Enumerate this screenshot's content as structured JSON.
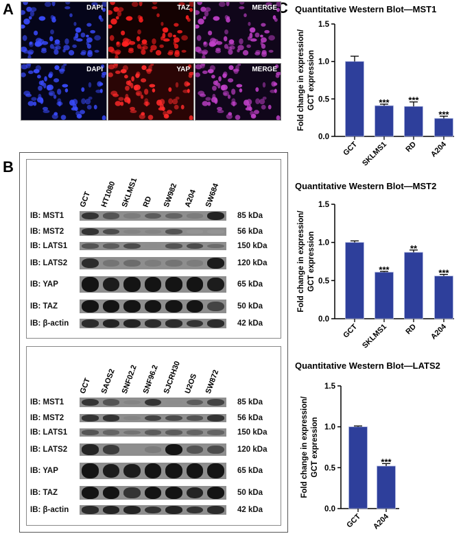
{
  "panels": {
    "a": "A",
    "b": "B",
    "c": "C"
  },
  "panel_a": {
    "rows": [
      [
        "DAPI",
        "TAZ",
        "MERGE"
      ],
      [
        "DAPI",
        "YAP",
        "MERGE"
      ]
    ]
  },
  "panel_b": {
    "blots": [
      {
        "lanes": [
          "GCT",
          "HT1080",
          "SKLMS1",
          "RD",
          "SW982",
          "A204",
          "SW684"
        ],
        "rows": [
          {
            "label": "IB: MST1",
            "kda": "85 kDa",
            "intensity": [
              0.8,
              0.6,
              0.35,
              0.55,
              0.5,
              0.35,
              0.9
            ]
          },
          {
            "label": "IB: MST2",
            "kda": "56 kDa",
            "intensity": [
              0.8,
              0.65,
              0.3,
              0.3,
              0.6,
              0.2,
              0.2
            ]
          },
          {
            "label": "IB: LATS1",
            "kda": "150 kDa",
            "intensity": [
              0.6,
              0.55,
              0.65,
              0.25,
              0.6,
              0.65,
              0.45
            ]
          },
          {
            "label": "IB: LATS2",
            "kda": "120 kDa",
            "intensity": [
              0.85,
              0.4,
              0.45,
              0.35,
              0.4,
              0.35,
              0.95
            ]
          },
          {
            "label": "IB: YAP",
            "kda": "65 kDa",
            "intensity": [
              1,
              0.95,
              1,
              1,
              1,
              1,
              0.95
            ]
          },
          {
            "label": "IB: TAZ",
            "kda": "50 kDa",
            "intensity": [
              1,
              1,
              1,
              1,
              1,
              1,
              0.7
            ]
          },
          {
            "label": "IB: β-actin",
            "kda": "42 kDa",
            "intensity": [
              0.85,
              0.9,
              0.9,
              0.85,
              0.85,
              0.8,
              0.85
            ]
          }
        ]
      },
      {
        "lanes": [
          "GCT",
          "SAOS2",
          "SNF02.2",
          "SNF96.2",
          "SJCRH30",
          "U2OS",
          "SW872"
        ],
        "rows": [
          {
            "label": "IB: MST1",
            "kda": "85 kDa",
            "intensity": [
              0.8,
              0.6,
              0.3,
              0.8,
              0.25,
              0.55,
              0.7
            ]
          },
          {
            "label": "IB: MST2",
            "kda": "56 kDa",
            "intensity": [
              0.8,
              0.8,
              0.3,
              0.7,
              0.65,
              0.6,
              0.8
            ]
          },
          {
            "label": "IB: LATS1",
            "kda": "150 kDa",
            "intensity": [
              0.6,
              0.5,
              0.4,
              0.55,
              0.55,
              0.5,
              0.5
            ]
          },
          {
            "label": "IB: LATS2",
            "kda": "120 kDa",
            "intensity": [
              0.9,
              0.75,
              0,
              0.35,
              1,
              0.6,
              0.65
            ]
          },
          {
            "label": "IB: YAP",
            "kda": "65 kDa",
            "intensity": [
              1,
              0.95,
              0.95,
              1,
              1,
              1,
              1
            ]
          },
          {
            "label": "IB: TAZ",
            "kda": "50 kDa",
            "intensity": [
              1,
              1,
              0.8,
              1,
              1,
              0.9,
              1
            ]
          },
          {
            "label": "IB: β-actin",
            "kda": "42 kDa",
            "intensity": [
              0.85,
              0.9,
              0.9,
              0.8,
              0.9,
              0.8,
              0.85
            ]
          }
        ]
      }
    ]
  },
  "chart_data": [
    {
      "type": "bar",
      "title": "Quantitative Western Blot—MST1",
      "ylabel": [
        "Fold change in expression/",
        "GCT expression"
      ],
      "categories": [
        "GCT",
        "SKLMS1",
        "RD",
        "A204"
      ],
      "values": [
        1.0,
        0.41,
        0.4,
        0.24
      ],
      "errors": [
        0.07,
        0.02,
        0.06,
        0.03
      ],
      "significance": [
        "",
        "***",
        "***",
        "***"
      ],
      "ylim": [
        0,
        1.5
      ],
      "yticks": [
        "0.0",
        "0.5",
        "1.0",
        "1.5"
      ],
      "color": "#2e3f9b"
    },
    {
      "type": "bar",
      "title": "Quantitative Western Blot—MST2",
      "ylabel": [
        "Fold change in expression/",
        "GCT expression"
      ],
      "categories": [
        "GCT",
        "SKLMS1",
        "RD",
        "A204"
      ],
      "values": [
        1.0,
        0.61,
        0.87,
        0.56
      ],
      "errors": [
        0.02,
        0.01,
        0.03,
        0.02
      ],
      "significance": [
        "",
        "***",
        "**",
        "***"
      ],
      "ylim": [
        0,
        1.5
      ],
      "yticks": [
        "0.0",
        "0.5",
        "1.0",
        "1.5"
      ],
      "color": "#2e3f9b"
    },
    {
      "type": "bar",
      "title": "Quantitative Western Blot—LATS2",
      "ylabel": [
        "Fold change in expression/",
        "GCT expression"
      ],
      "categories": [
        "GCT",
        "A204"
      ],
      "values": [
        1.0,
        0.52
      ],
      "errors": [
        0.01,
        0.03
      ],
      "significance": [
        "",
        "***"
      ],
      "ylim": [
        0,
        1.5
      ],
      "yticks": [
        "0.0",
        "0.5",
        "1.0",
        "1.5"
      ],
      "color": "#2e3f9b"
    }
  ]
}
